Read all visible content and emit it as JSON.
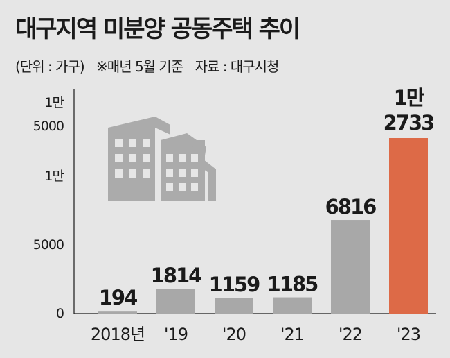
{
  "title": "대구지역 미분양 공동주택 추이",
  "subtitle": {
    "unit": "(단위 : 가구)",
    "note": "※매년 5월 기준",
    "source": "자료 : 대구시청"
  },
  "colors": {
    "bar_gray": "#a8a8a8",
    "bar_highlight": "#dd6a47",
    "building": "#ababab",
    "background": "#e6e6e6"
  },
  "icon": "buildings-illustration",
  "chart_data": {
    "type": "bar",
    "categories": [
      "2018년",
      "'19",
      "'20",
      "'21",
      "'22",
      "'23"
    ],
    "values": [
      194,
      1814,
      1159,
      1185,
      6816,
      12733
    ],
    "data_labels": [
      "194",
      "1814",
      "1159",
      "1185",
      "6816",
      "1만|2733"
    ],
    "highlight_index": 5,
    "y_axis_break": true,
    "y_tick_labels": [
      "0",
      "5000",
      "1만",
      "5000",
      "1만"
    ],
    "xlabel": "",
    "ylabel": "",
    "grid": false
  }
}
